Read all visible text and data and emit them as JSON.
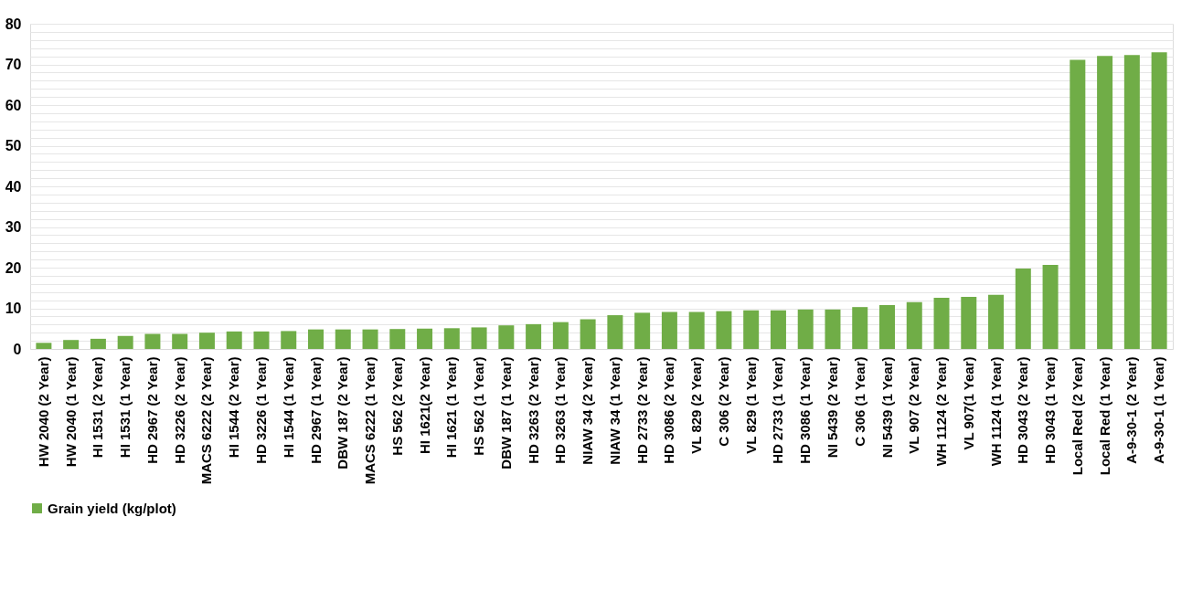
{
  "chart_data": {
    "type": "bar",
    "categories": [
      "HW 2040 (2 Year)",
      "HW 2040 (1 Year)",
      "HI 1531 (2 Year)",
      "HI 1531 (1 Year)",
      "HD 2967 (2 Year)",
      "HD 3226 (2 Year)",
      "MACS 6222 (2 Year)",
      "HI 1544 (2 Year)",
      "HD 3226 (1 Year)",
      "HI 1544 (1 Year)",
      "HD 2967 (1 Year)",
      "DBW 187 (2 Year)",
      "MACS 6222 (1 Year)",
      "HS 562 (2 Year)",
      "HI 1621(2 Year)",
      "HI 1621 (1 Year)",
      "HS 562  (1 Year)",
      "DBW 187 (1 Year)",
      "HD 3263 (2 Year)",
      "HD 3263 (1 Year)",
      "NIAW 34 (2 Year)",
      "NIAW 34 (1 Year)",
      "HD 2733 (2 Year)",
      "HD 3086 (2 Year)",
      "VL 829 (2 Year)",
      "C 306 (2 Year)",
      "VL 829 (1 Year)",
      "HD 2733 (1 Year)",
      "HD 3086 (1 Year)",
      "NI 5439 (2 Year)",
      "C 306 (1 Year)",
      "NI 5439 (1 Year)",
      "VL 907 (2 Year)",
      "WH 1124 (2 Year)",
      "VL 907(1 Year)",
      "WH 1124 (1 Year)",
      "HD 3043 (2 Year)",
      "HD 3043 (1 Year)",
      "Local Red (2 Year)",
      "Local Red (1 Year)",
      "A-9-30-1 (2 Year)",
      "A-9-30-1 (1 Year)"
    ],
    "series": [
      {
        "name": "Grain yield (kg/plot)",
        "color": "#70ad47",
        "values": [
          1.5,
          2.2,
          2.5,
          3.2,
          3.7,
          3.7,
          4.0,
          4.3,
          4.3,
          4.4,
          4.8,
          4.8,
          4.8,
          4.9,
          5.0,
          5.1,
          5.3,
          5.8,
          6.1,
          6.6,
          7.3,
          8.3,
          8.9,
          9.1,
          9.1,
          9.3,
          9.5,
          9.5,
          9.7,
          9.7,
          10.3,
          10.8,
          11.5,
          12.6,
          12.8,
          13.3,
          19.8,
          20.7,
          71.1,
          72.1,
          72.3,
          73.0
        ]
      }
    ],
    "ylim": [
      0,
      80
    ],
    "yticks": [
      0,
      {
        "value": 2,
        "label": null
      },
      {
        "value": 4,
        "label": null
      },
      {
        "value": 6,
        "label": null
      },
      {
        "value": 8,
        "label": null
      },
      10,
      {
        "value": 12,
        "label": null
      },
      {
        "value": 14,
        "label": null
      },
      {
        "value": 16,
        "label": null
      },
      {
        "value": 18,
        "label": null
      },
      20,
      {
        "value": 22,
        "label": null
      },
      {
        "value": 24,
        "label": null
      },
      {
        "value": 26,
        "label": null
      },
      {
        "value": 28,
        "label": null
      },
      30,
      {
        "value": 32,
        "label": null
      },
      {
        "value": 34,
        "label": null
      },
      {
        "value": 36,
        "label": null
      },
      {
        "value": 38,
        "label": null
      },
      40,
      {
        "value": 42,
        "label": null
      },
      {
        "value": 44,
        "label": null
      },
      {
        "value": 46,
        "label": null
      },
      {
        "value": 48,
        "label": null
      },
      50,
      {
        "value": 52,
        "label": null
      },
      {
        "value": 54,
        "label": null
      },
      {
        "value": 56,
        "label": null
      },
      {
        "value": 58,
        "label": null
      },
      60,
      {
        "value": 62,
        "label": null
      },
      {
        "value": 64,
        "label": null
      },
      {
        "value": 66,
        "label": null
      },
      {
        "value": 68,
        "label": null
      },
      70,
      {
        "value": 72,
        "label": null
      },
      {
        "value": 74,
        "label": null
      },
      {
        "value": 76,
        "label": null
      },
      {
        "value": 78,
        "label": null
      },
      80
    ],
    "grid": "y",
    "legend": "bottom"
  }
}
